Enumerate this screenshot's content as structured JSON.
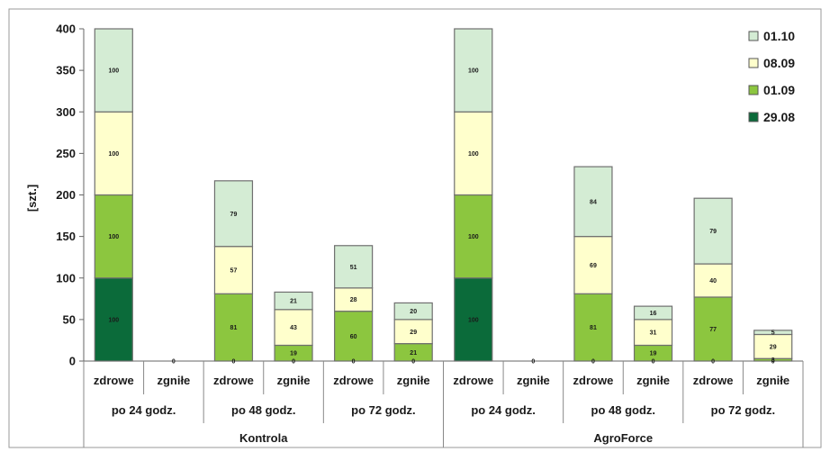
{
  "chart_data": {
    "type": "bar",
    "stacked": true,
    "ylabel": "[szt.]",
    "xlabel": "",
    "title": "",
    "ylim": [
      0,
      400
    ],
    "yticks": [
      0,
      50,
      100,
      150,
      200,
      250,
      300,
      350,
      400
    ],
    "grid": false,
    "legend_position": "top-right",
    "groups": [
      "Kontrola",
      "AgroForce"
    ],
    "subgroups": [
      "po 24 godz.",
      "po 48 godz.",
      "po 72 godz.",
      "po 24 godz.",
      "po 48 godz.",
      "po 72 godz."
    ],
    "categories": [
      "zdrowe",
      "zgniłe",
      "zdrowe",
      "zgniłe",
      "zdrowe",
      "zgniłe",
      "zdrowe",
      "zgniłe",
      "zdrowe",
      "zgniłe",
      "zdrowe",
      "zgniłe"
    ],
    "series": [
      {
        "name": "29.08",
        "color": "#0b6b3a",
        "values": [
          100,
          0,
          0,
          0,
          0,
          0,
          100,
          0,
          0,
          0,
          0,
          0
        ]
      },
      {
        "name": "01.09",
        "color": "#8cc63f",
        "values": [
          100,
          0,
          81,
          19,
          60,
          21,
          100,
          0,
          81,
          19,
          77,
          3
        ]
      },
      {
        "name": "08.09",
        "color": "#ffffcc",
        "values": [
          100,
          0,
          57,
          43,
          28,
          29,
          100,
          0,
          69,
          31,
          40,
          29
        ]
      },
      {
        "name": "01.10",
        "color": "#d4ecd4",
        "values": [
          100,
          0,
          79,
          21,
          51,
          20,
          100,
          0,
          84,
          16,
          79,
          5
        ]
      }
    ],
    "data_labels": [
      [
        "100",
        "100",
        "100",
        "100"
      ],
      [
        "0",
        "",
        "",
        ""
      ],
      [
        "0",
        "81",
        "57",
        "79"
      ],
      [
        "0",
        "19",
        "43",
        "21"
      ],
      [
        "0",
        "60",
        "28",
        "51"
      ],
      [
        "0",
        "21",
        "29",
        "20"
      ],
      [
        "100",
        "100",
        "100",
        "100"
      ],
      [
        "0",
        "",
        "",
        ""
      ],
      [
        "0",
        "81",
        "69",
        "84"
      ],
      [
        "0",
        "19",
        "31",
        "16"
      ],
      [
        "0",
        "77",
        "40",
        "79"
      ],
      [
        "0",
        "3",
        "29",
        "5"
      ]
    ]
  }
}
